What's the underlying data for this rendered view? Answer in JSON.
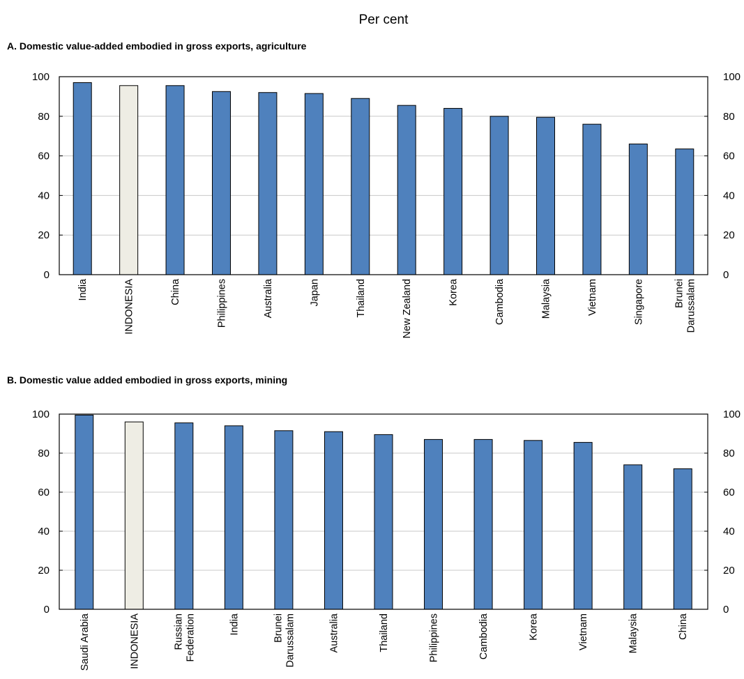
{
  "unit_label": "Per cent",
  "colors": {
    "bar": "#4f81bd",
    "highlight": "#eeede4",
    "grid": "#c8c8c8",
    "axis": "#000000"
  },
  "chart_data": [
    {
      "type": "bar",
      "title": "A. Domestic value-added embodied in gross exports, agriculture",
      "categories": [
        "India",
        "INDONESIA",
        "China",
        "Philippines",
        "Australia",
        "Japan",
        "Thailand",
        "New Zealand",
        "Korea",
        "Cambodia",
        "Malaysia",
        "Vietnam",
        "Singapore",
        "Brunei Darussalam"
      ],
      "category_lines": [
        [
          "India"
        ],
        [
          "INDONESIA"
        ],
        [
          "China"
        ],
        [
          "Philippines"
        ],
        [
          "Australia"
        ],
        [
          "Japan"
        ],
        [
          "Thailand"
        ],
        [
          "New Zealand"
        ],
        [
          "Korea"
        ],
        [
          "Cambodia"
        ],
        [
          "Malaysia"
        ],
        [
          "Vietnam"
        ],
        [
          "Singapore"
        ],
        [
          "Brunei",
          "Darussalam"
        ]
      ],
      "values": [
        97,
        95.5,
        95.5,
        92.5,
        92,
        91.5,
        89,
        85.5,
        84,
        80,
        79.5,
        76,
        66,
        63.5
      ],
      "highlight": "INDONESIA",
      "ylim": [
        0,
        100
      ],
      "yticks": [
        0,
        20,
        40,
        60,
        80,
        100
      ],
      "grid": true,
      "secondary_axis": true
    },
    {
      "type": "bar",
      "title": "B. Domestic value added embodied in gross exports, mining",
      "categories": [
        "Saudi Arabia",
        "INDONESIA",
        "Russian Federation",
        "India",
        "Brunei Darussalam",
        "Australia",
        "Thailand",
        "Philippines",
        "Cambodia",
        "Korea",
        "Vietnam",
        "Malaysia",
        "China"
      ],
      "category_lines": [
        [
          "Saudi Arabia"
        ],
        [
          "INDONESIA"
        ],
        [
          "Russian",
          "Federation"
        ],
        [
          "India"
        ],
        [
          "Brunei",
          "Darussalam"
        ],
        [
          "Australia"
        ],
        [
          "Thailand"
        ],
        [
          "Philippines"
        ],
        [
          "Cambodia"
        ],
        [
          "Korea"
        ],
        [
          "Vietnam"
        ],
        [
          "Malaysia"
        ],
        [
          "China"
        ]
      ],
      "values": [
        99.5,
        96,
        95.5,
        94,
        91.5,
        91,
        89.5,
        87,
        87,
        86.5,
        85.5,
        74,
        72
      ],
      "highlight": "INDONESIA",
      "ylim": [
        0,
        100
      ],
      "yticks": [
        0,
        20,
        40,
        60,
        80,
        100
      ],
      "grid": true,
      "secondary_axis": true
    }
  ]
}
